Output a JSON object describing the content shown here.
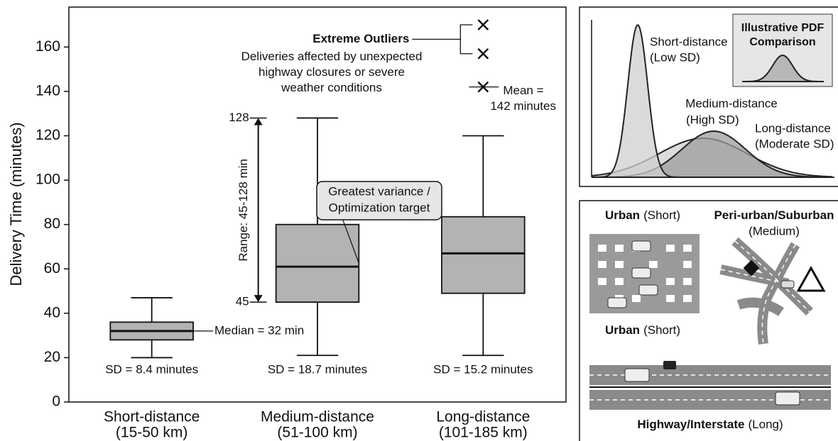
{
  "chart_data": {
    "type": "box",
    "y_label": "Delivery Time (minutes)",
    "categories": [
      "Short-distance",
      "Medium-distance",
      "Long-distance"
    ],
    "category_ranges": [
      "(15-50 km)",
      "(51-100 km)",
      "(101-185 km)"
    ],
    "color": "#b3b3b3",
    "whisker_low": [
      20,
      21,
      21
    ],
    "q1": [
      28,
      45,
      49
    ],
    "median": [
      32,
      61,
      67
    ],
    "q3": [
      36,
      80,
      83.5
    ],
    "whisker_high": [
      47,
      128,
      120
    ],
    "outliers": [
      [],
      [],
      [
        170,
        157
      ]
    ],
    "means": [
      null,
      null,
      142
    ],
    "ylim": [
      0,
      178
    ],
    "yticks": [
      0,
      20,
      40,
      60,
      80,
      100,
      120,
      140,
      160
    ],
    "sd_labels": [
      "SD = 8.4 minutes",
      "SD = 18.7 minutes",
      "SD = 15.2 minutes"
    ],
    "median_label": "Median = 32 min",
    "range_label": "Range: 45-128 min",
    "range_ticks": [
      128,
      45
    ],
    "callout": [
      "Greatest variance /",
      "Optimization target"
    ],
    "outlier_title": "Extreme Outliers",
    "outlier_note": [
      "Deliveries affected by unexpected",
      "highway closures or severe",
      "weather conditions"
    ],
    "mean_label": [
      "Mean =",
      "142 minutes"
    ]
  },
  "panels": {
    "pdf": {
      "inset_title": [
        "Illustrative PDF",
        "Comparison"
      ],
      "labels": [
        [
          "Short-distance",
          "(Low SD)"
        ],
        [
          "Medium-distance",
          "(High SD)"
        ],
        [
          "Long-distance",
          "(Moderate SD)"
        ]
      ]
    },
    "map": {
      "labels": [
        {
          "bold": "Urban",
          "normal": "(Short)"
        },
        {
          "bold": "Peri-urban/Suburban",
          "normal": "(Medium)"
        },
        {
          "bold": "Urban",
          "normal": "(Short)"
        },
        {
          "bold": "Highway/Interstate",
          "normal": "(Long)"
        }
      ]
    }
  }
}
